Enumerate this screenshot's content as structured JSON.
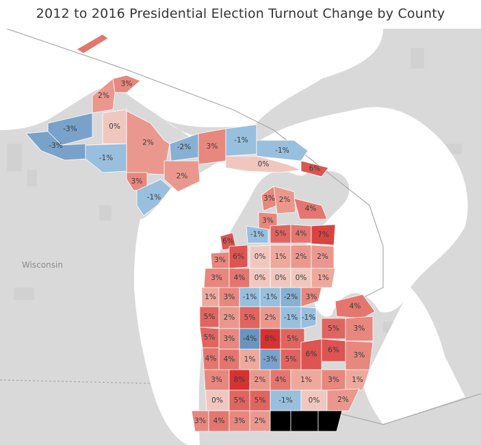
{
  "title": "2012 to 2016 Presidential Election Turnout Change by County",
  "place_labels": {
    "wisconsin": "Wisconsin"
  },
  "colors": {
    "land": "#d8d8d8",
    "water": "#ffffff",
    "border": "#a0a0a0",
    "county_edge": "#c9c9c9"
  },
  "scale": {
    "min": -8,
    "max": 8,
    "neutral_color": "#f0c7bf"
  },
  "counties": [
    {
      "label": "3%",
      "value": 3
    },
    {
      "label": "2%",
      "value": 2
    },
    {
      "label": "-3%",
      "value": -3
    },
    {
      "label": "0%",
      "value": 0
    },
    {
      "label": "-3%",
      "value": -3
    },
    {
      "label": "-1%",
      "value": -1
    },
    {
      "label": "2%",
      "value": 2
    },
    {
      "label": "3%",
      "value": 3
    },
    {
      "label": "-1%",
      "value": -1
    },
    {
      "label": "-2%",
      "value": -2
    },
    {
      "label": "3%",
      "value": 3
    },
    {
      "label": "2%",
      "value": 2
    },
    {
      "label": "-1%",
      "value": -1
    },
    {
      "label": "-1%",
      "value": -1
    },
    {
      "label": "0%",
      "value": 0
    },
    {
      "label": "6%",
      "value": 6
    },
    {
      "label": "3%",
      "value": 3
    },
    {
      "label": "2%",
      "value": 2
    },
    {
      "label": "4%",
      "value": 4
    },
    {
      "label": "3%",
      "value": 3
    },
    {
      "label": "6%",
      "value": 6
    },
    {
      "label": "-1%",
      "value": -1
    },
    {
      "label": "5%",
      "value": 5
    },
    {
      "label": "4%",
      "value": 4
    },
    {
      "label": "7%",
      "value": 7
    },
    {
      "label": "3%",
      "value": 3
    },
    {
      "label": "6%",
      "value": 6
    },
    {
      "label": "0%",
      "value": 0
    },
    {
      "label": "1%",
      "value": 1
    },
    {
      "label": "2%",
      "value": 2
    },
    {
      "label": "2%",
      "value": 2
    },
    {
      "label": "3%",
      "value": 3
    },
    {
      "label": "4%",
      "value": 4
    },
    {
      "label": "0%",
      "value": 0
    },
    {
      "label": "0%",
      "value": 0
    },
    {
      "label": "0%",
      "value": 0
    },
    {
      "label": "1%",
      "value": 1
    },
    {
      "label": "1%",
      "value": 1
    },
    {
      "label": "3%",
      "value": 3
    },
    {
      "label": "-1%",
      "value": -1
    },
    {
      "label": "-1%",
      "value": -1
    },
    {
      "label": "-2%",
      "value": -2
    },
    {
      "label": "3%",
      "value": 3
    },
    {
      "label": "4%",
      "value": 4
    },
    {
      "label": "5%",
      "value": 5
    },
    {
      "label": "2%",
      "value": 2
    },
    {
      "label": "5%",
      "value": 5
    },
    {
      "label": "2%",
      "value": 2
    },
    {
      "label": "-1%",
      "value": -1
    },
    {
      "label": "-1%",
      "value": -1
    },
    {
      "label": "5%",
      "value": 5
    },
    {
      "label": "3%",
      "value": 3
    },
    {
      "label": "5%",
      "value": 5
    },
    {
      "label": "3%",
      "value": 3
    },
    {
      "label": "-4%",
      "value": -4
    },
    {
      "label": "8%",
      "value": 8
    },
    {
      "label": "5%",
      "value": 5
    },
    {
      "label": "4%",
      "value": 4
    },
    {
      "label": "4%",
      "value": 4
    },
    {
      "label": "1%",
      "value": 1
    },
    {
      "label": "-3%",
      "value": -3
    },
    {
      "label": "5%",
      "value": 5
    },
    {
      "label": "6%",
      "value": 6
    },
    {
      "label": "6%",
      "value": 6
    },
    {
      "label": "3%",
      "value": 3
    },
    {
      "label": "3%",
      "value": 3
    },
    {
      "label": "8%",
      "value": 8
    },
    {
      "label": "2%",
      "value": 2
    },
    {
      "label": "4%",
      "value": 4
    },
    {
      "label": "1%",
      "value": 1
    },
    {
      "label": "3%",
      "value": 3
    },
    {
      "label": "1%",
      "value": 1
    },
    {
      "label": "0%",
      "value": 0
    },
    {
      "label": "5%",
      "value": 5
    },
    {
      "label": "5%",
      "value": 5
    },
    {
      "label": "-1%",
      "value": -1
    },
    {
      "label": "0%",
      "value": 0
    },
    {
      "label": "2%",
      "value": 2
    },
    {
      "label": "3%",
      "value": 3
    },
    {
      "label": "4%",
      "value": 4
    },
    {
      "label": "3%",
      "value": 3
    },
    {
      "label": "2%",
      "value": 2
    }
  ]
}
